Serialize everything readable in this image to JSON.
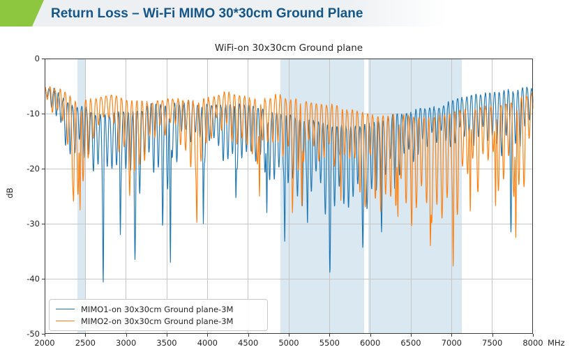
{
  "slide": {
    "title": "Return Loss – Wi-Fi MIMO 30*30cm Ground Plane",
    "accent_color": "#8DC63F",
    "title_color": "#14568A"
  },
  "chart_data": {
    "type": "line",
    "title": "WiFi-on 30x30cm Ground plane",
    "xlabel": "MHz",
    "ylabel": "dB",
    "xlim": [
      2000,
      8000
    ],
    "ylim": [
      -50,
      0
    ],
    "xticks": [
      2000,
      2500,
      3000,
      3500,
      4000,
      4500,
      5000,
      5500,
      6000,
      6500,
      7000,
      7500,
      8000
    ],
    "yticks": [
      0,
      -10,
      -20,
      -30,
      -40,
      -50
    ],
    "grid": true,
    "legend_position": "lower left",
    "band_color": "#d9e8f1",
    "highlight_bands_mhz": [
      [
        2400,
        2500
      ],
      [
        4900,
        5925
      ],
      [
        5975,
        7125
      ]
    ],
    "series": [
      {
        "name": "MIMO1-on 30x30cm Ground plane-3M",
        "color": "#1f77b4",
        "ripple_period_mhz": 57,
        "seed": 7,
        "envelope_freq_upper_lower_db": [
          [
            2000,
            -4.5,
            -7.5
          ],
          [
            2100,
            -5,
            -9
          ],
          [
            2200,
            -6.5,
            -13
          ],
          [
            2300,
            -8,
            -16
          ],
          [
            2400,
            -8.5,
            -18
          ],
          [
            2500,
            -8.5,
            -17
          ],
          [
            2600,
            -9.5,
            -20
          ],
          [
            2700,
            -10,
            -26
          ],
          [
            2800,
            -10,
            -21
          ],
          [
            2900,
            -9.5,
            -24
          ],
          [
            3000,
            -9,
            -21
          ],
          [
            3100,
            -9.5,
            -27
          ],
          [
            3200,
            -9,
            -22
          ],
          [
            3300,
            -8,
            -18
          ],
          [
            3400,
            -8,
            -21
          ],
          [
            3500,
            -8,
            -25
          ],
          [
            3600,
            -8,
            -20
          ],
          [
            3700,
            -7.5,
            -16
          ],
          [
            3800,
            -7.5,
            -15
          ],
          [
            3900,
            -8,
            -18
          ],
          [
            4000,
            -8,
            -17
          ],
          [
            4100,
            -8,
            -18
          ],
          [
            4200,
            -8,
            -19
          ],
          [
            4300,
            -8,
            -21
          ],
          [
            4400,
            -8,
            -18
          ],
          [
            4500,
            -8,
            -16
          ],
          [
            4600,
            -8.5,
            -20
          ],
          [
            4700,
            -9,
            -23
          ],
          [
            4800,
            -9.5,
            -22
          ],
          [
            4900,
            -10,
            -25
          ],
          [
            5000,
            -10,
            -23
          ],
          [
            5100,
            -10.5,
            -25
          ],
          [
            5200,
            -11,
            -26
          ],
          [
            5300,
            -11,
            -24
          ],
          [
            5400,
            -11.5,
            -26
          ],
          [
            5500,
            -12,
            -29
          ],
          [
            5600,
            -12,
            -26
          ],
          [
            5700,
            -12,
            -26
          ],
          [
            5800,
            -12,
            -27
          ],
          [
            5900,
            -12,
            -29
          ],
          [
            6000,
            -11.5,
            -27
          ],
          [
            6100,
            -11,
            -27
          ],
          [
            6200,
            -10.5,
            -24
          ],
          [
            6300,
            -10,
            -22
          ],
          [
            6400,
            -10,
            -20
          ],
          [
            6500,
            -9.5,
            -19
          ],
          [
            6600,
            -9,
            -18
          ],
          [
            6700,
            -9,
            -17
          ],
          [
            6800,
            -8.5,
            -16
          ],
          [
            6900,
            -8,
            -16
          ],
          [
            7000,
            -7.5,
            -15
          ],
          [
            7100,
            -7,
            -14
          ],
          [
            7200,
            -6.5,
            -14
          ],
          [
            7300,
            -6,
            -15
          ],
          [
            7400,
            -6,
            -16
          ],
          [
            7500,
            -6,
            -15
          ],
          [
            7600,
            -6,
            -16
          ],
          [
            7700,
            -5.5,
            -19
          ],
          [
            7800,
            -5.5,
            -17
          ],
          [
            7900,
            -5,
            -15
          ],
          [
            8000,
            -5,
            -13
          ]
        ],
        "deep_nulls_freq_db": [
          [
            2720,
            -40.6
          ],
          [
            2930,
            -32
          ],
          [
            3110,
            -36.5
          ],
          [
            3450,
            -30.5
          ],
          [
            3545,
            -37
          ],
          [
            3950,
            -30
          ],
          [
            4350,
            -25.5
          ],
          [
            4730,
            -28
          ],
          [
            4950,
            -33.5
          ],
          [
            5230,
            -30
          ],
          [
            5505,
            -39
          ],
          [
            5910,
            -34.5
          ],
          [
            6140,
            -31.5
          ],
          [
            7730,
            -31.5
          ]
        ]
      },
      {
        "name": "MIMO2-on 30x30cm Ground plane-3M",
        "color": "#ff7f0e",
        "ripple_period_mhz": 63,
        "seed": 13,
        "envelope_freq_upper_lower_db": [
          [
            2000,
            -4.5,
            -7
          ],
          [
            2100,
            -5,
            -10
          ],
          [
            2200,
            -5.5,
            -14
          ],
          [
            2300,
            -6.5,
            -19
          ],
          [
            2400,
            -7.5,
            -23
          ],
          [
            2500,
            -7.5,
            -21
          ],
          [
            2600,
            -7,
            -17
          ],
          [
            2700,
            -6.5,
            -14
          ],
          [
            2800,
            -6,
            -13
          ],
          [
            2900,
            -6.5,
            -16
          ],
          [
            3000,
            -7,
            -19
          ],
          [
            3100,
            -7.5,
            -21
          ],
          [
            3200,
            -7.5,
            -19
          ],
          [
            3300,
            -7.5,
            -16
          ],
          [
            3400,
            -7,
            -14
          ],
          [
            3500,
            -7,
            -13.5
          ],
          [
            3600,
            -7,
            -15
          ],
          [
            3700,
            -7.5,
            -17
          ],
          [
            3800,
            -7.5,
            -20
          ],
          [
            3900,
            -7.5,
            -18
          ],
          [
            4000,
            -7,
            -16
          ],
          [
            4100,
            -6.5,
            -14
          ],
          [
            4200,
            -6,
            -13
          ],
          [
            4300,
            -6,
            -14
          ],
          [
            4400,
            -6.5,
            -16
          ],
          [
            4500,
            -7,
            -17
          ],
          [
            4600,
            -7,
            -19
          ],
          [
            4700,
            -7,
            -17
          ],
          [
            4800,
            -6.5,
            -16
          ],
          [
            4900,
            -6.5,
            -17
          ],
          [
            5000,
            -7,
            -19
          ],
          [
            5100,
            -7,
            -21
          ],
          [
            5200,
            -7.5,
            -19
          ],
          [
            5300,
            -8,
            -18
          ],
          [
            5400,
            -8,
            -18
          ],
          [
            5500,
            -8,
            -19
          ],
          [
            5600,
            -8.5,
            -21
          ],
          [
            5700,
            -9,
            -20
          ],
          [
            5800,
            -9,
            -21
          ],
          [
            5900,
            -9.5,
            -23
          ],
          [
            6000,
            -10,
            -23
          ],
          [
            6100,
            -10,
            -25
          ],
          [
            6200,
            -10,
            -25
          ],
          [
            6300,
            -10,
            -25
          ],
          [
            6400,
            -10,
            -25
          ],
          [
            6500,
            -10,
            -26
          ],
          [
            6600,
            -10,
            -26
          ],
          [
            6700,
            -10,
            -28
          ],
          [
            6800,
            -10,
            -27
          ],
          [
            6900,
            -10,
            -28
          ],
          [
            7000,
            -9.5,
            -29
          ],
          [
            7100,
            -9,
            -26
          ],
          [
            7200,
            -9,
            -25
          ],
          [
            7300,
            -9,
            -23
          ],
          [
            7400,
            -8.5,
            -23
          ],
          [
            7500,
            -8,
            -23
          ],
          [
            7600,
            -8,
            -23
          ],
          [
            7700,
            -7.5,
            -25
          ],
          [
            7800,
            -7,
            -26
          ],
          [
            7900,
            -6.5,
            -21
          ],
          [
            8000,
            -6,
            -19
          ]
        ],
        "deep_nulls_freq_db": [
          [
            2355,
            -26
          ],
          [
            2435,
            -27.5
          ],
          [
            3045,
            -25
          ],
          [
            3870,
            -30
          ],
          [
            4640,
            -25
          ],
          [
            5045,
            -28
          ],
          [
            5160,
            -27
          ],
          [
            5640,
            -26
          ],
          [
            5940,
            -27
          ],
          [
            6130,
            -28
          ],
          [
            6340,
            -29
          ],
          [
            6510,
            -30.5
          ],
          [
            6740,
            -34
          ],
          [
            7020,
            -38
          ],
          [
            7230,
            -28
          ],
          [
            7540,
            -27
          ],
          [
            7790,
            -32.5
          ]
        ]
      }
    ]
  }
}
